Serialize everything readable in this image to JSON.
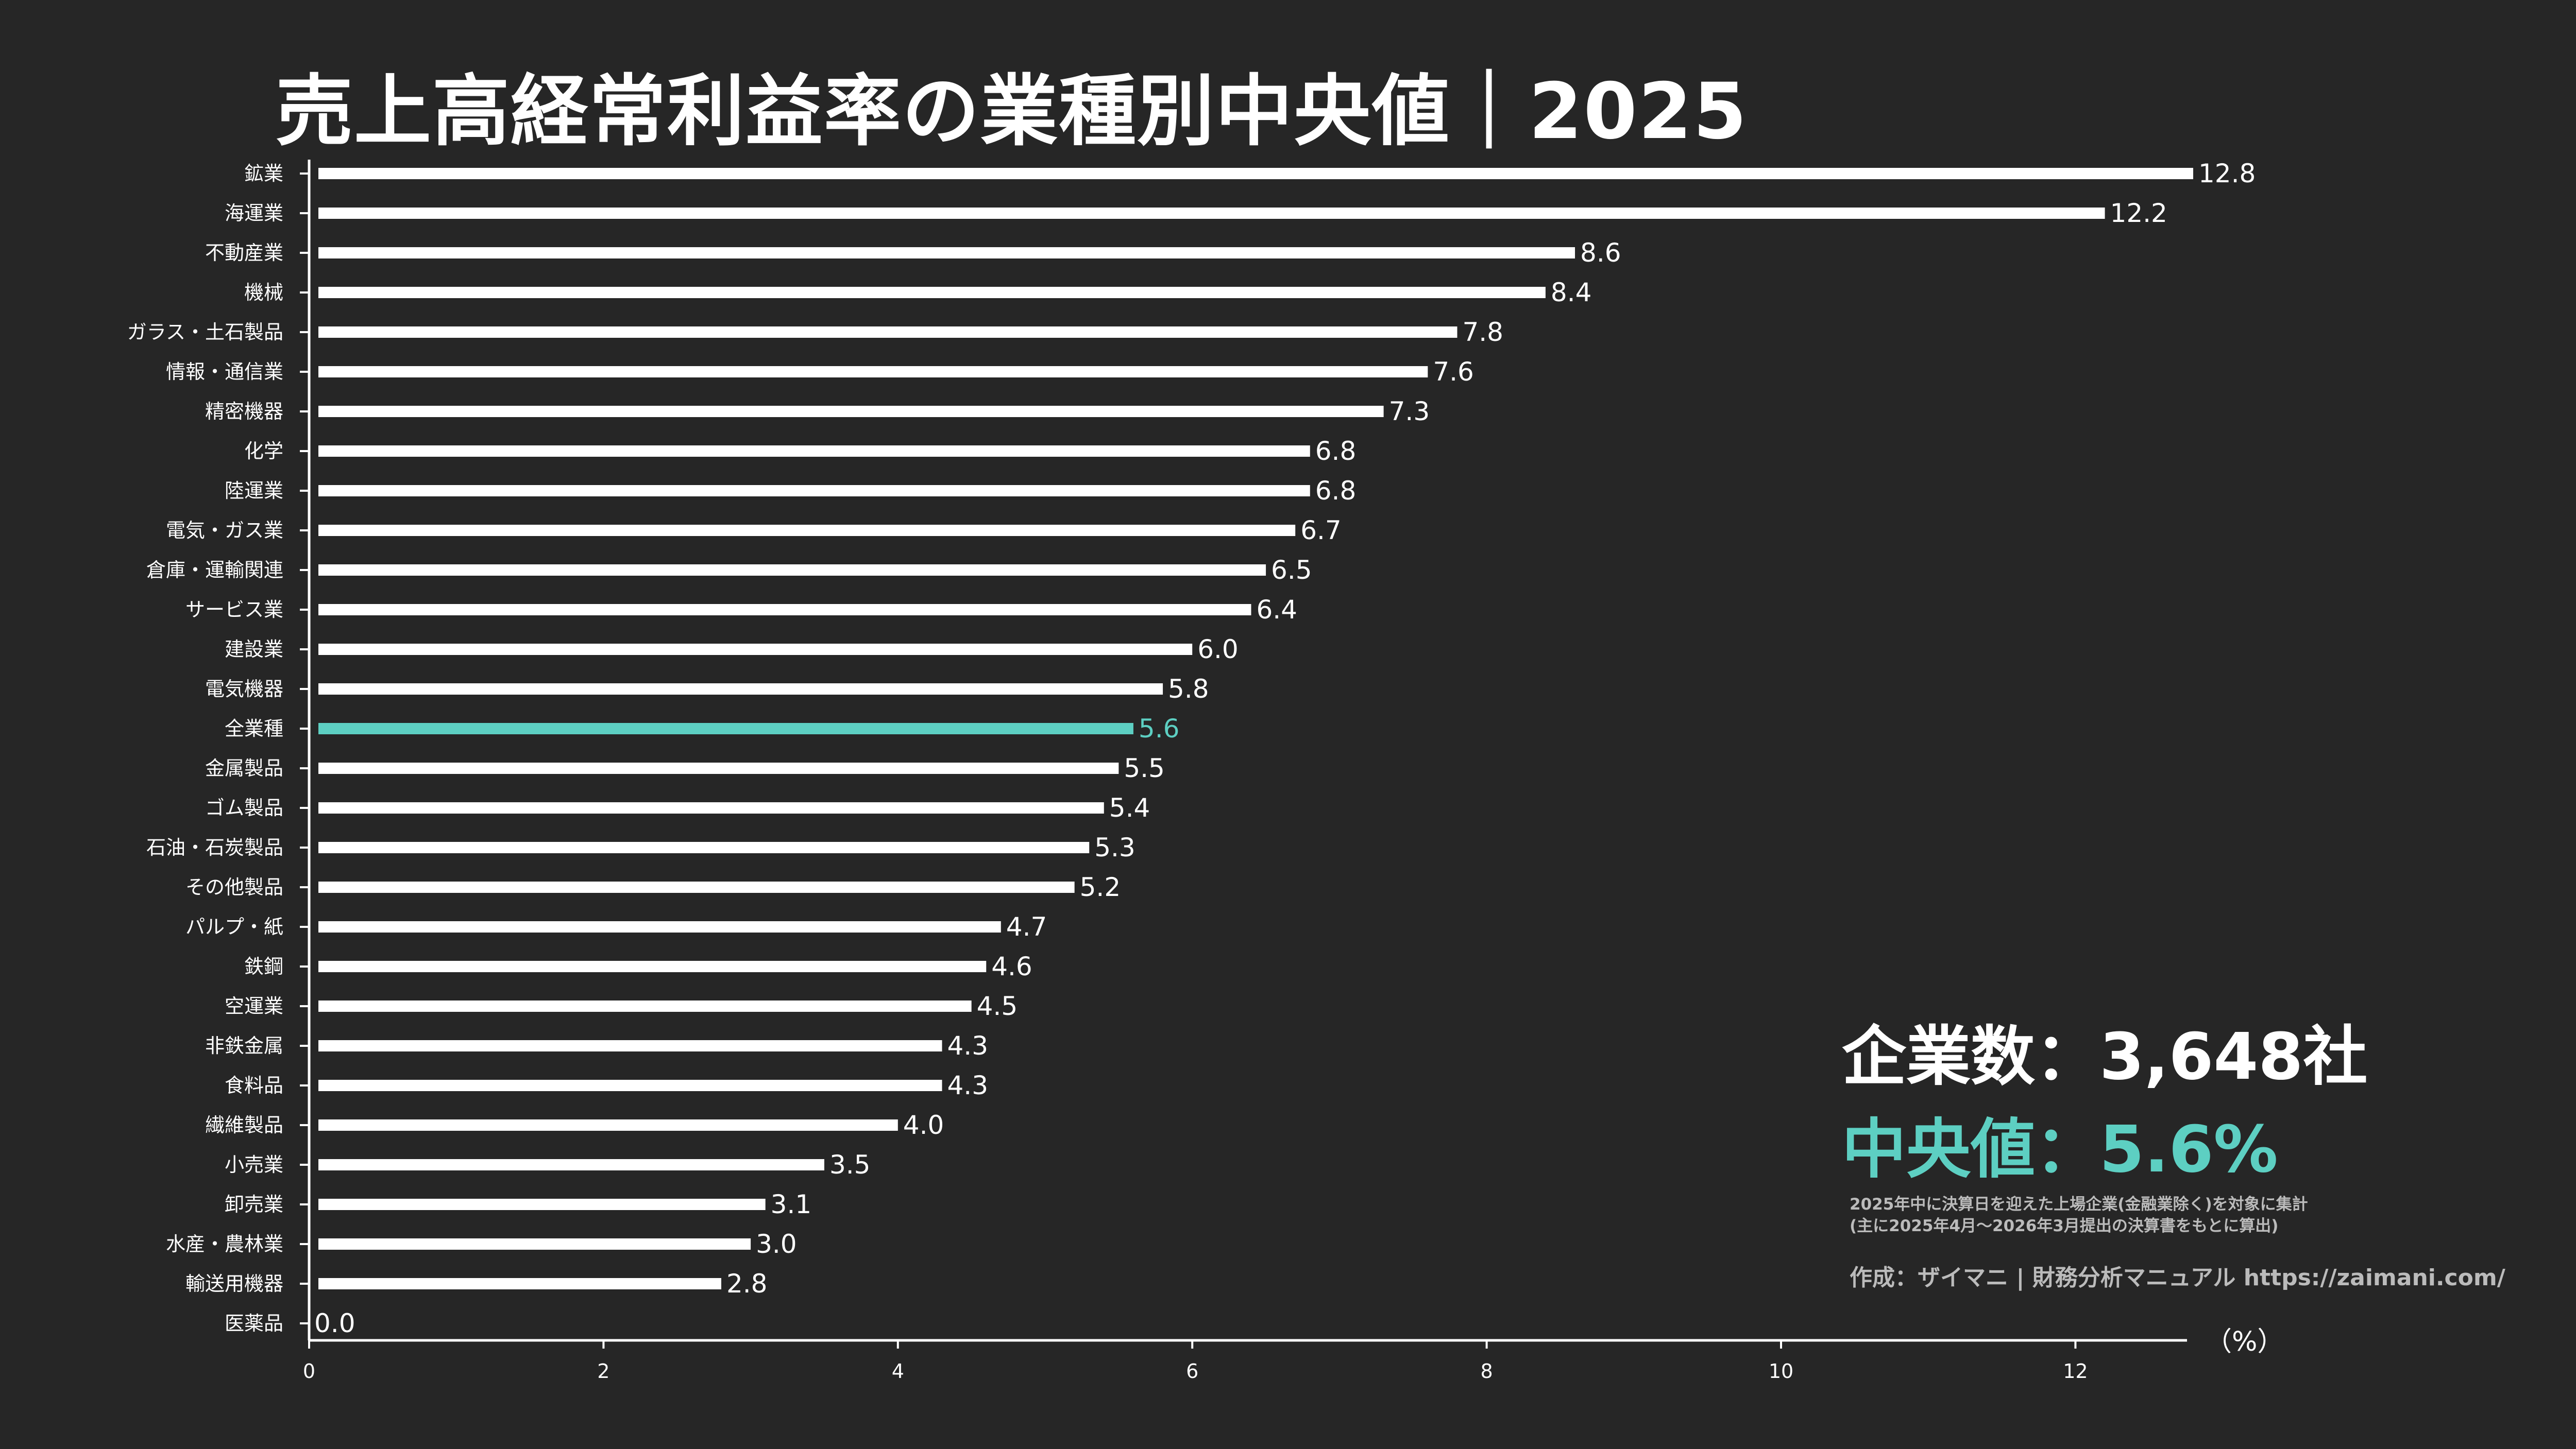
{
  "title": "売上高経常利益率の業種別中央値｜2025",
  "stats": {
    "companies": "企業数：3,648社",
    "median": "中央値：5.6%"
  },
  "notes": {
    "line1": "2025年中に決算日を迎えた上場企業(金融業除く)を対象に集計",
    "line2": "(主に2025年4月～2026年3月提出の決算書をもとに算出)",
    "credit": "作成：ザイマニ | 財務分析マニュアル https://zaimani.com/"
  },
  "colors": {
    "background": "#262626",
    "bar": "#ffffff",
    "highlight": "#5dcfc2",
    "text": "#ffffff"
  },
  "chart_data": {
    "type": "bar",
    "orientation": "horizontal",
    "title": "売上高経常利益率の業種別中央値｜2025",
    "unit_label": "（%）",
    "categories": [
      "鉱業",
      "海運業",
      "不動産業",
      "機械",
      "ガラス・土石製品",
      "情報・通信業",
      "精密機器",
      "化学",
      "陸運業",
      "電気・ガス業",
      "倉庫・運輸関連",
      "サービス業",
      "建設業",
      "電気機器",
      "全業種",
      "金属製品",
      "ゴム製品",
      "石油・石炭製品",
      "その他製品",
      "パルプ・紙",
      "鉄鋼",
      "空運業",
      "非鉄金属",
      "食料品",
      "繊維製品",
      "小売業",
      "卸売業",
      "水産・農林業",
      "輸送用機器",
      "医薬品"
    ],
    "values": [
      12.8,
      12.2,
      8.6,
      8.4,
      7.8,
      7.6,
      7.3,
      6.8,
      6.8,
      6.7,
      6.5,
      6.4,
      6.0,
      5.8,
      5.6,
      5.5,
      5.4,
      5.3,
      5.2,
      4.7,
      4.6,
      4.5,
      4.3,
      4.3,
      4.0,
      3.5,
      3.1,
      3.0,
      2.8,
      0.0
    ],
    "value_labels": [
      "12.8",
      "12.2",
      "8.6",
      "8.4",
      "7.8",
      "7.6",
      "7.3",
      "6.8",
      "6.8",
      "6.7",
      "6.5",
      "6.4",
      "6.0",
      "5.8",
      "5.6",
      "5.5",
      "5.4",
      "5.3",
      "5.2",
      "4.7",
      "4.6",
      "4.5",
      "4.3",
      "4.3",
      "4.0",
      "3.5",
      "3.1",
      "3.0",
      "2.8",
      "0.0"
    ],
    "highlight_category": "全業種",
    "xticks": [
      0,
      2,
      4,
      6,
      8,
      10,
      12
    ],
    "xlim": [
      0,
      12.8
    ],
    "grid": false
  }
}
